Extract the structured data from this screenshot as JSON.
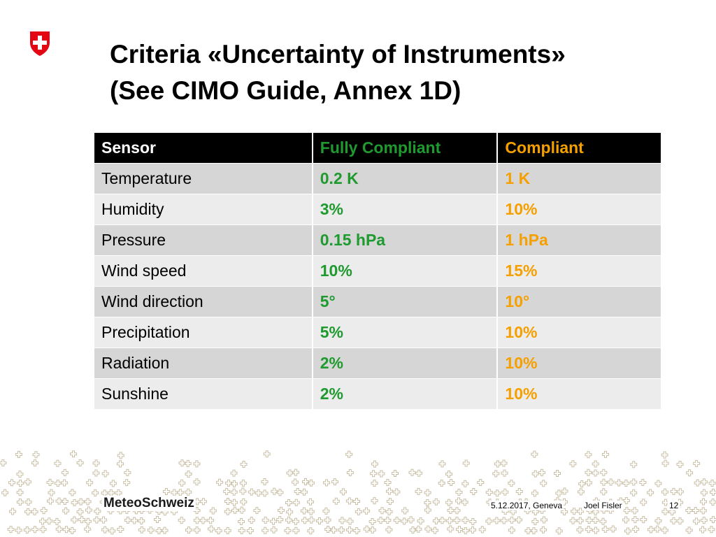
{
  "slide": {
    "title_line1": "Criteria «Uncertainty of Instruments»",
    "title_line2": "(See CIMO Guide, Annex 1D)"
  },
  "table": {
    "headers": [
      "Sensor",
      "Fully Compliant",
      "Compliant"
    ],
    "rows": [
      [
        "Temperature",
        "0.2 K",
        "1 K"
      ],
      [
        "Humidity",
        "3%",
        "10%"
      ],
      [
        "Pressure",
        "0.15 hPa",
        "1 hPa"
      ],
      [
        "Wind speed",
        "10%",
        "15%"
      ],
      [
        "Wind direction",
        "5°",
        "10°"
      ],
      [
        "Precipitation",
        "5%",
        "10%"
      ],
      [
        "Radiation",
        "2%",
        "10%"
      ],
      [
        "Sunshine",
        "2%",
        "10%"
      ]
    ]
  },
  "footer": {
    "logo": "MeteoSchweiz",
    "date": "5.12.2017, Geneva",
    "author": "Joel Fisler",
    "page": "12"
  },
  "colors": {
    "swiss_red": "#e30613",
    "fully_compliant": "#1f9a2f",
    "compliant": "#f5a000",
    "pattern": "#c9bfa5"
  },
  "icons": [
    "swiss-shield-icon"
  ]
}
